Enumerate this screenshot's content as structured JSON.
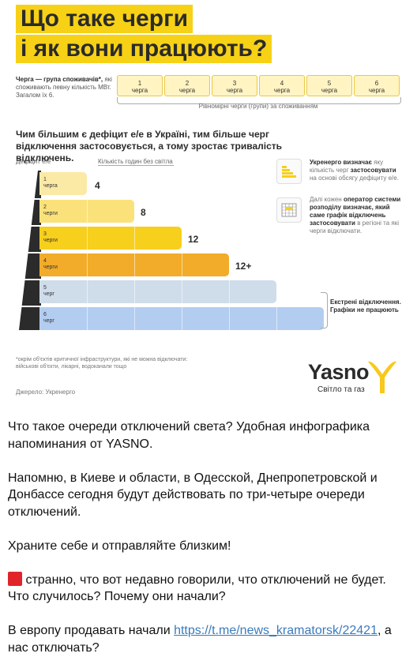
{
  "infographic": {
    "title_line1": "Що таке черги",
    "title_line2": "і як вони працюють?",
    "queue_definition_bold": "Черга — група споживачів*,",
    "queue_definition_rest": "які споживають певну кількість МВт. Загалом їх 6.",
    "queues": [
      {
        "num": "1",
        "label": "черга"
      },
      {
        "num": "2",
        "label": "черга"
      },
      {
        "num": "3",
        "label": "черга"
      },
      {
        "num": "4",
        "label": "черга"
      },
      {
        "num": "5",
        "label": "черга"
      },
      {
        "num": "6",
        "label": "черга"
      }
    ],
    "queues_caption": "Рівномірні черги (групи) за споживанням",
    "headline": "Чим більшим є дефіцит е/е в Україні, тим більше черг відключення застосовується, а тому зростає тривалість відключень.",
    "axis_deficit": "Дефіцит е/е",
    "axis_hours": "Кількість годин без світла",
    "bars": [
      {
        "num": "1",
        "label": "черга",
        "hours": "4",
        "color": "#fbe9a6"
      },
      {
        "num": "2",
        "label": "черги",
        "hours": "8",
        "color": "#fbe17a"
      },
      {
        "num": "3",
        "label": "черги",
        "hours": "12",
        "color": "#f7cf1d"
      },
      {
        "num": "4",
        "label": "черги",
        "hours": "12+",
        "color": "#f2ac29"
      },
      {
        "num": "5",
        "label": "черг",
        "hours": "",
        "color": "#cfdcea"
      },
      {
        "num": "6",
        "label": "черг",
        "hours": "",
        "color": "#b3cdf0"
      }
    ],
    "side1_bold1": "Укренерго визначає",
    "side1_mid": "яку кількість черг",
    "side1_bold2": "застосовувати",
    "side1_rest": "на основі обсягу дефіциту е/е.",
    "side2_pre": "Далі кожен",
    "side2_bold": "оператор системи розподілу визначає, який саме графік відключень застосовувати",
    "side2_mid": "в регіоні",
    "side2_rest": "та які черги відключати.",
    "emergency": "Екстрені відключення. Графіки не працюють",
    "footnote": "*окрім об'єктів критичної інфраструктури, які не можна відключати: військові об'єкти, лікарні, водоканали тощо",
    "source": "Джерело: Укренерго",
    "logo_name": "Yasno",
    "logo_sub": "Світло та газ",
    "logo_color": "#f7c91b"
  },
  "post": {
    "p1": "Что такое очереди отключений света?  Удобная инфографика напоминания от YASNO.",
    "p2": "Напомню, в Киеве и области, в Одесской, Днепропетровской и Донбассе сегодня будут действовать по три-четыре очереди отключений.",
    "p3": "Храните себе и отправляйте близким!",
    "p4_icon": "red-square-icon",
    "p4": " странно, что вот недавно говорили, что отключений не будет. Что случилось? Почему они начали?",
    "p5_pre": "В европу продавать начали ",
    "p5_link": "https://t.me/news_kramatorsk/22421",
    "p5_post": ", а нас отключать?"
  }
}
